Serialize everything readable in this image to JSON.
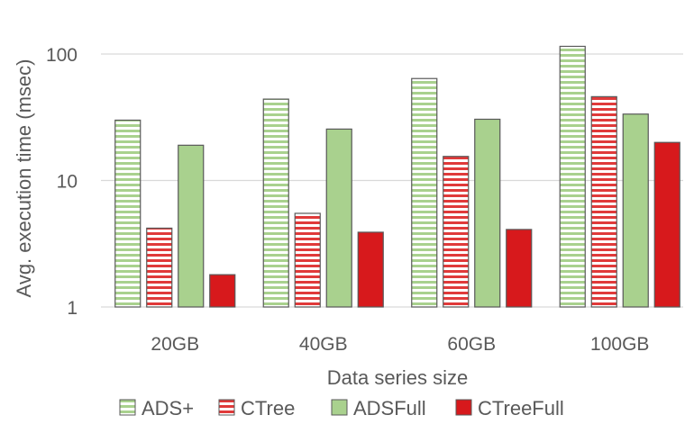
{
  "chart_data": {
    "type": "bar",
    "title": "",
    "xlabel": "Data series size",
    "ylabel": "Avg. execution time (msec)",
    "y_scale": "log",
    "ylim": [
      1,
      100
    ],
    "y_ticks": [
      1,
      10,
      100
    ],
    "y_tick_labels": [
      "1",
      "10",
      "100"
    ],
    "grid": true,
    "legend_position": "bottom",
    "categories": [
      "20GB",
      "40GB",
      "60GB",
      "100GB"
    ],
    "series": [
      {
        "name": "ADS+",
        "values": [
          30,
          44,
          64,
          115
        ],
        "color": "#a9d18e",
        "pattern": "horizontal-stripes"
      },
      {
        "name": "CTree",
        "values": [
          4.2,
          5.5,
          15.5,
          46
        ],
        "color": "#e03a3a",
        "pattern": "horizontal-stripes"
      },
      {
        "name": "ADSFull",
        "values": [
          19,
          25.5,
          30.5,
          33.5
        ],
        "color": "#a9d18e",
        "pattern": "solid"
      },
      {
        "name": "CTreeFull",
        "values": [
          1.8,
          3.9,
          4.1,
          20
        ],
        "color": "#d7191c",
        "pattern": "solid"
      }
    ]
  }
}
